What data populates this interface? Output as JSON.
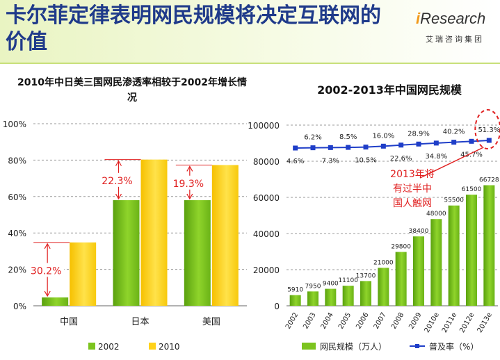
{
  "page": {
    "title": "卡尔菲定律表明网民规模将决定互联网的价值",
    "logo_brand_i": "i",
    "logo_brand_rest": "Research",
    "logo_sub": "艾瑞咨询集团"
  },
  "chart_data": [
    {
      "type": "bar",
      "title": "2010年中日美三国网民渗透率相较于2002年增长情况",
      "categories": [
        "中国",
        "日本",
        "美国"
      ],
      "series": [
        {
          "name": "2002",
          "values": [
            4.6,
            58,
            58
          ],
          "color": "#7cc41f"
        },
        {
          "name": "2010",
          "values": [
            34.8,
            80.3,
            77.3
          ],
          "color": "#ffd21a"
        }
      ],
      "annotations": [
        "30.2%",
        "22.3%",
        "19.3%"
      ],
      "ylim": [
        0,
        100
      ],
      "yticks": [
        "0%",
        "20%",
        "40%",
        "60%",
        "80%",
        "100%"
      ],
      "legend": "bottom",
      "grid": true
    },
    {
      "type": "bar",
      "title": "2002-2013年中国网民规模",
      "categories": [
        "2002",
        "2003",
        "2004",
        "2005",
        "2006",
        "2007",
        "2008",
        "2009",
        "2010e",
        "2011e",
        "2012e",
        "2013e"
      ],
      "series": [
        {
          "name": "网民规模（万人）",
          "values": [
            5910,
            7950,
            9400,
            11100,
            13700,
            21000,
            29800,
            38400,
            48000,
            55500,
            61500,
            66728
          ],
          "color": "#7cc41f"
        },
        {
          "name": "普及率（%）",
          "type": "line",
          "values": [
            4.6,
            6.2,
            7.3,
            8.5,
            10.5,
            16.0,
            22.6,
            28.9,
            34.8,
            40.2,
            45.7,
            51.3
          ],
          "labels": [
            "4.6%",
            "6.2%",
            "7.3%",
            "8.5%",
            "10.5%",
            "16.0%",
            "22.6%",
            "28.9%",
            "34.8%",
            "40.2%",
            "45.7%",
            "51.3%"
          ],
          "color": "#1f3ec8"
        }
      ],
      "ylim": [
        0,
        100000
      ],
      "yticks": [
        "0",
        "20000",
        "40000",
        "60000",
        "80000",
        "100000"
      ],
      "annotation_lines": [
        "2013年将",
        "有过半中",
        "国人触网"
      ],
      "legend": "bottom",
      "grid": true
    }
  ]
}
